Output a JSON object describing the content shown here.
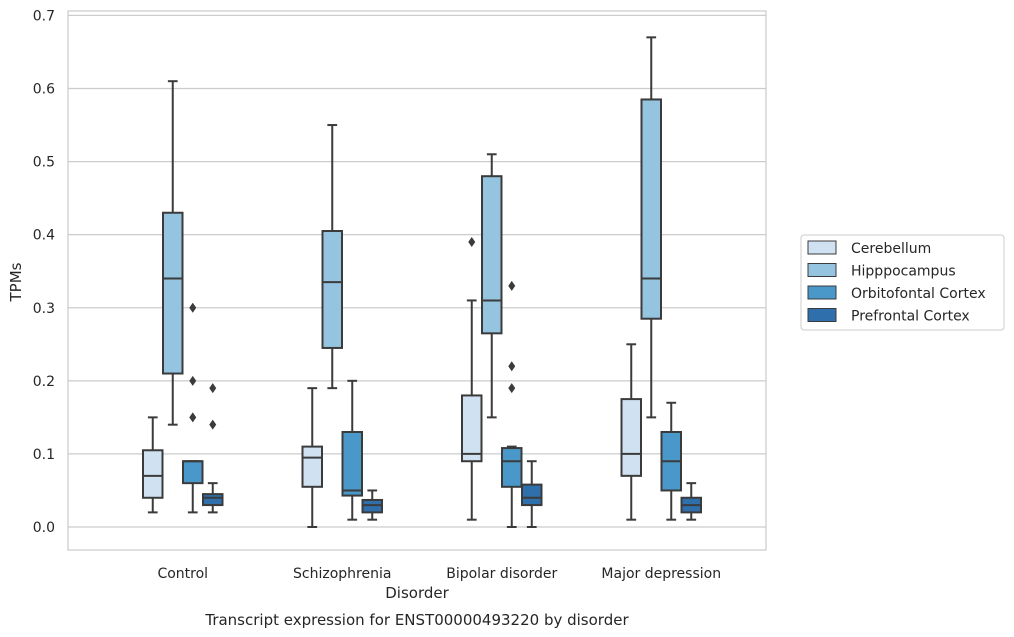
{
  "chart_data": {
    "type": "box",
    "title": "Transcript expression for ENST00000493220 by disorder",
    "xlabel": "Disorder",
    "ylabel": "TPMs",
    "ylim": [
      -0.032,
      0.706
    ],
    "yticks": [
      0.0,
      0.1,
      0.2,
      0.3,
      0.4,
      0.5,
      0.6,
      0.7
    ],
    "ytick_labels": [
      "0.0",
      "0.1",
      "0.2",
      "0.3",
      "0.4",
      "0.5",
      "0.6",
      "0.7"
    ],
    "grid": "horizontal",
    "legend_position": "right",
    "categories": [
      "Control",
      "Schizophrenia",
      "Bipolar disorder",
      "Major depression"
    ],
    "series": [
      {
        "name": "Cerebellum",
        "color": "#d0e1f2",
        "boxes": [
          {
            "whislo": 0.02,
            "q1": 0.04,
            "med": 0.07,
            "q3": 0.105,
            "whishi": 0.15,
            "fliers": []
          },
          {
            "whislo": 0.0,
            "q1": 0.055,
            "med": 0.095,
            "q3": 0.11,
            "whishi": 0.19,
            "fliers": []
          },
          {
            "whislo": 0.01,
            "q1": 0.09,
            "med": 0.1,
            "q3": 0.18,
            "whishi": 0.31,
            "fliers": [
              0.39
            ]
          },
          {
            "whislo": 0.01,
            "q1": 0.07,
            "med": 0.1,
            "q3": 0.175,
            "whishi": 0.25,
            "fliers": []
          }
        ]
      },
      {
        "name": "Hipppocampus",
        "color": "#94c4df",
        "boxes": [
          {
            "whislo": 0.14,
            "q1": 0.21,
            "med": 0.34,
            "q3": 0.43,
            "whishi": 0.61,
            "fliers": []
          },
          {
            "whislo": 0.19,
            "q1": 0.245,
            "med": 0.335,
            "q3": 0.405,
            "whishi": 0.55,
            "fliers": []
          },
          {
            "whislo": 0.15,
            "q1": 0.265,
            "med": 0.31,
            "q3": 0.48,
            "whishi": 0.51,
            "fliers": []
          },
          {
            "whislo": 0.15,
            "q1": 0.285,
            "med": 0.34,
            "q3": 0.585,
            "whishi": 0.67,
            "fliers": []
          }
        ]
      },
      {
        "name": "Orbitofontal Cortex",
        "color": "#4a98c9",
        "boxes": [
          {
            "whislo": 0.02,
            "q1": 0.06,
            "med": 0.09,
            "q3": 0.09,
            "whishi": 0.09,
            "fliers": [
              0.15,
              0.2,
              0.3
            ]
          },
          {
            "whislo": 0.01,
            "q1": 0.043,
            "med": 0.05,
            "q3": 0.13,
            "whishi": 0.2,
            "fliers": []
          },
          {
            "whislo": 0.0,
            "q1": 0.055,
            "med": 0.09,
            "q3": 0.108,
            "whishi": 0.11,
            "fliers": [
              0.19,
              0.22,
              0.33
            ]
          },
          {
            "whislo": 0.01,
            "q1": 0.05,
            "med": 0.09,
            "q3": 0.13,
            "whishi": 0.17,
            "fliers": []
          }
        ]
      },
      {
        "name": "Prefrontal Cortex",
        "color": "#2e6fac",
        "boxes": [
          {
            "whislo": 0.02,
            "q1": 0.03,
            "med": 0.04,
            "q3": 0.045,
            "whishi": 0.06,
            "fliers": [
              0.14,
              0.19
            ]
          },
          {
            "whislo": 0.01,
            "q1": 0.02,
            "med": 0.03,
            "q3": 0.037,
            "whishi": 0.05,
            "fliers": []
          },
          {
            "whislo": 0.0,
            "q1": 0.03,
            "med": 0.04,
            "q3": 0.058,
            "whishi": 0.09,
            "fliers": []
          },
          {
            "whislo": 0.01,
            "q1": 0.02,
            "med": 0.03,
            "q3": 0.04,
            "whishi": 0.06,
            "fliers": []
          }
        ]
      }
    ]
  }
}
